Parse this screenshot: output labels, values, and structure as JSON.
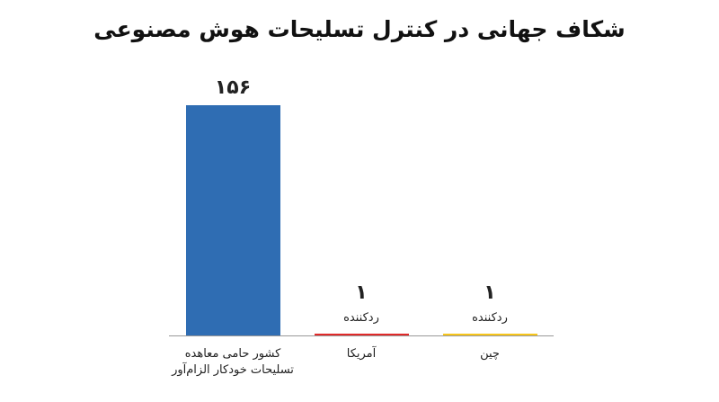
{
  "chart_data": {
    "type": "bar",
    "title": "شکاف جهانی در کنترل تسلیحات هوش مصنوعی",
    "categories": [
      "کشور حامی معاهده\nتسلیحات خودکار الزام‌آور",
      "آمریکا",
      "چین"
    ],
    "values": [
      156,
      1,
      1
    ],
    "value_labels": [
      "۱۵۶",
      "۱",
      "۱"
    ],
    "sublabels": [
      null,
      "ردکننده",
      "ردکننده"
    ],
    "colors": [
      "#2f6db3",
      "#e02a2a",
      "#f7c51b"
    ]
  }
}
